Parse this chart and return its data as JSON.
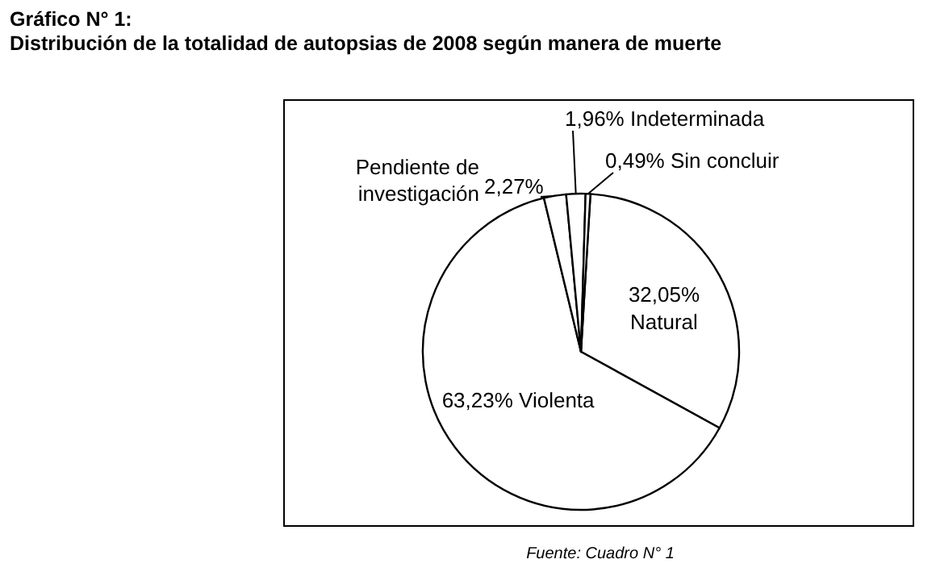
{
  "chart_data": {
    "type": "pie",
    "title": "Gráfico N° 1:\nDistribución de la totalidad de autopsias de 2008 según manera de muerte",
    "categories": [
      "Natural",
      "Violenta",
      "Pendiente de investigación",
      "Indeterminada",
      "Sin concluir"
    ],
    "values": [
      32.05,
      63.23,
      2.27,
      1.96,
      0.49
    ],
    "value_labels": [
      "32,05%",
      "63,23%",
      "2,27%",
      "1,96%",
      "0,49%"
    ],
    "colors": [
      "#ffffff",
      "#ffffff",
      "#ffffff",
      "#ffffff",
      "#ffffff"
    ],
    "annotations": [
      "Fuente: Cuadro N° 1"
    ]
  }
}
